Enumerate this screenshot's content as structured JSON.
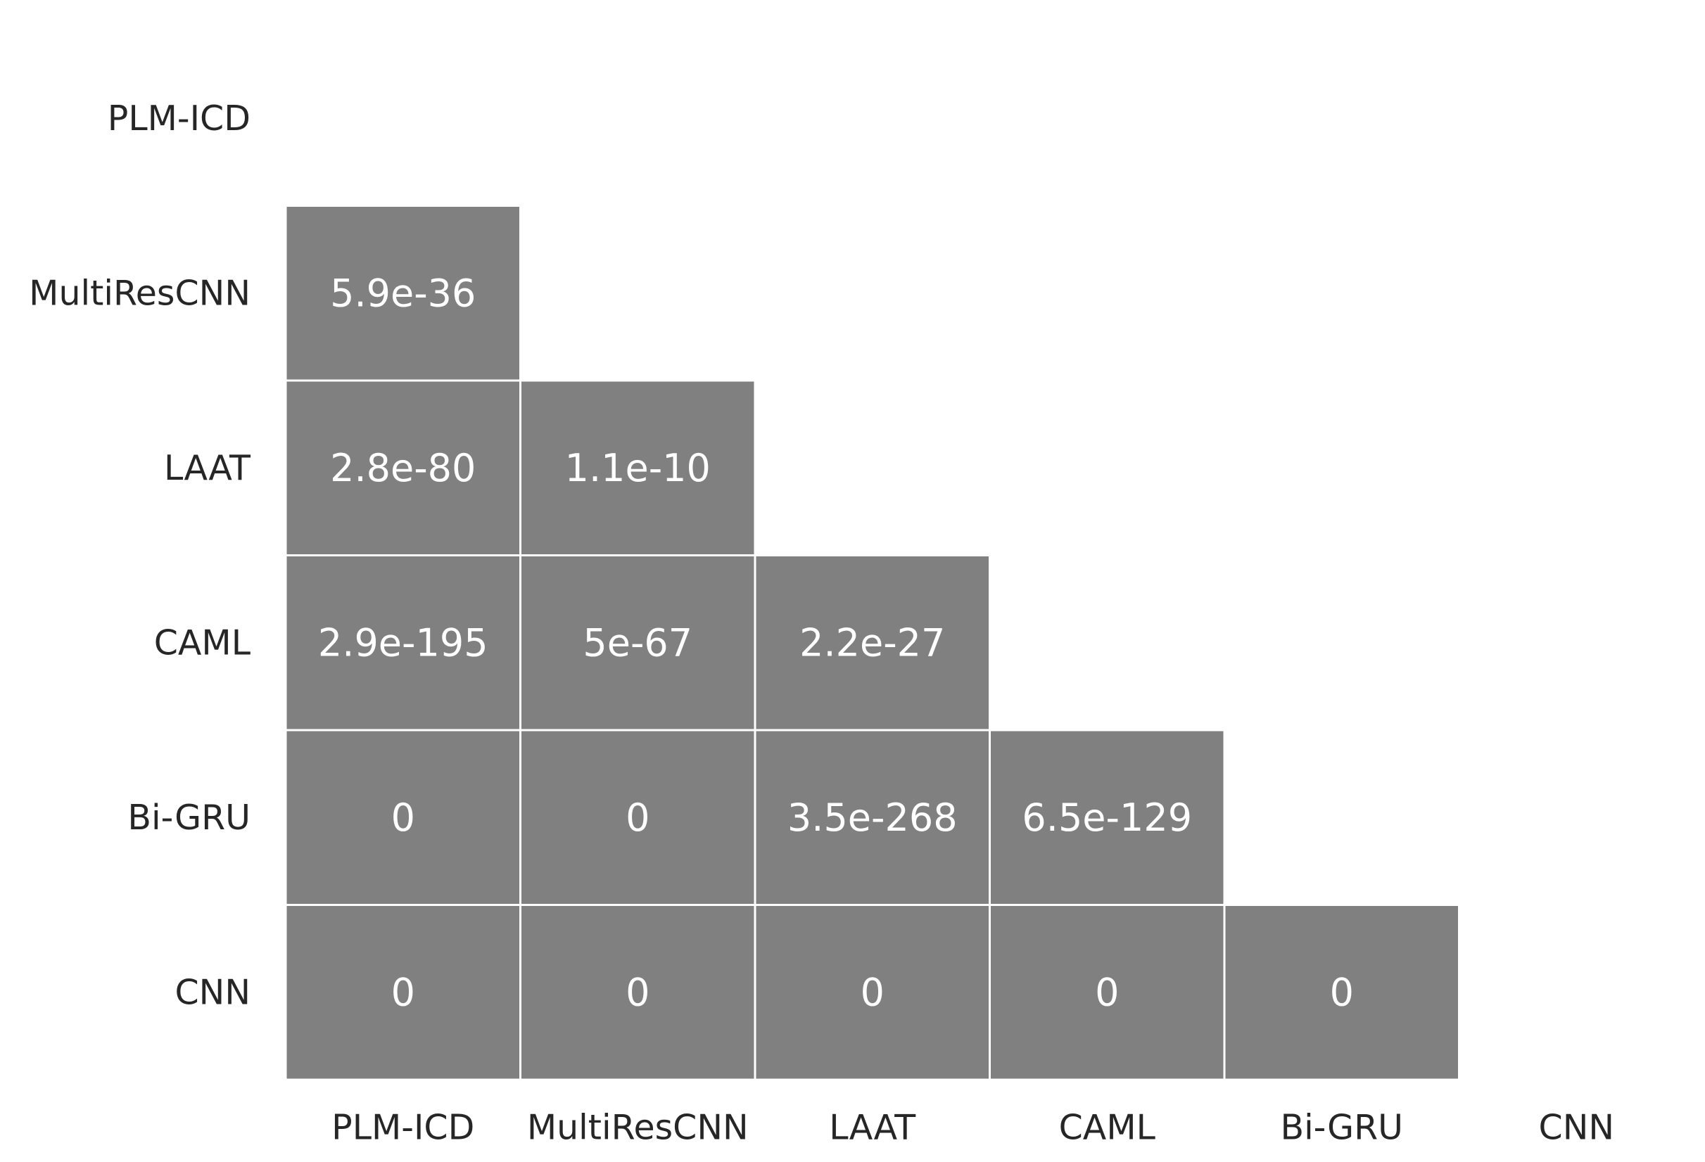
{
  "chart_data": {
    "type": "heatmap",
    "title": "",
    "xlabel": "",
    "ylabel": "",
    "row_labels": [
      "PLM-ICD",
      "MultiResCNN",
      "LAAT",
      "CAML",
      "Bi-GRU",
      "CNN"
    ],
    "col_labels": [
      "PLM-ICD",
      "MultiResCNN",
      "LAAT",
      "CAML",
      "Bi-GRU",
      "CNN"
    ],
    "mask": "upper-triangle-including-diagonal",
    "cell_color": "#808080",
    "grid_color": "#ffffff",
    "text_color": "#ffffff",
    "tick_color": "#262626",
    "cells": [
      {
        "row": "MultiResCNN",
        "col": "PLM-ICD",
        "label": "5.9e-36",
        "value": 5.9e-36
      },
      {
        "row": "LAAT",
        "col": "PLM-ICD",
        "label": "2.8e-80",
        "value": 2.8e-80
      },
      {
        "row": "LAAT",
        "col": "MultiResCNN",
        "label": "1.1e-10",
        "value": 1.1e-10
      },
      {
        "row": "CAML",
        "col": "PLM-ICD",
        "label": "2.9e-195",
        "value": 2.9e-195
      },
      {
        "row": "CAML",
        "col": "MultiResCNN",
        "label": "5e-67",
        "value": 5e-67
      },
      {
        "row": "CAML",
        "col": "LAAT",
        "label": "2.2e-27",
        "value": 2.2e-27
      },
      {
        "row": "Bi-GRU",
        "col": "PLM-ICD",
        "label": "0",
        "value": 0
      },
      {
        "row": "Bi-GRU",
        "col": "MultiResCNN",
        "label": "0",
        "value": 0
      },
      {
        "row": "Bi-GRU",
        "col": "LAAT",
        "label": "3.5e-268",
        "value": 3.5e-268
      },
      {
        "row": "Bi-GRU",
        "col": "CAML",
        "label": "6.5e-129",
        "value": 6.5e-129
      },
      {
        "row": "CNN",
        "col": "PLM-ICD",
        "label": "0",
        "value": 0
      },
      {
        "row": "CNN",
        "col": "MultiResCNN",
        "label": "0",
        "value": 0
      },
      {
        "row": "CNN",
        "col": "LAAT",
        "label": "0",
        "value": 0
      },
      {
        "row": "CNN",
        "col": "CAML",
        "label": "0",
        "value": 0
      },
      {
        "row": "CNN",
        "col": "Bi-GRU",
        "label": "0",
        "value": 0
      }
    ]
  }
}
